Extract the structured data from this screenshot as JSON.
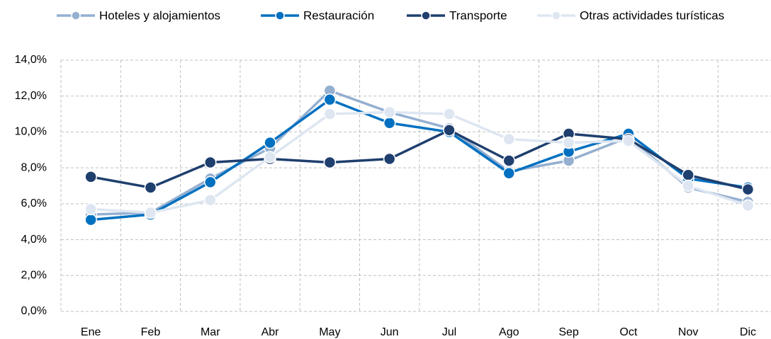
{
  "chart_data": {
    "type": "line",
    "categories": [
      "Ene",
      "Feb",
      "Mar",
      "Abr",
      "May",
      "Jun",
      "Jul",
      "Ago",
      "Sep",
      "Oct",
      "Nov",
      "Dic"
    ],
    "series": [
      {
        "name": "Hoteles y alojamientos",
        "color": "#94afd0",
        "values": [
          5.4,
          5.5,
          7.4,
          9.1,
          12.3,
          11.1,
          10.2,
          7.8,
          8.4,
          9.7,
          6.9,
          6.1
        ]
      },
      {
        "name": "Restauración",
        "color": "#0070c0",
        "values": [
          5.1,
          5.4,
          7.2,
          9.4,
          11.8,
          10.5,
          10.0,
          7.7,
          8.9,
          9.9,
          7.4,
          6.9
        ]
      },
      {
        "name": "Transporte",
        "color": "#1f3f6e",
        "values": [
          7.5,
          6.9,
          8.3,
          8.5,
          8.3,
          8.5,
          10.1,
          8.4,
          9.9,
          9.6,
          7.6,
          6.8
        ]
      },
      {
        "name": "Otras actividades turísticas",
        "color": "#dde6f1",
        "values": [
          5.7,
          5.5,
          6.2,
          8.6,
          11.0,
          11.1,
          11.0,
          9.6,
          9.4,
          9.5,
          7.0,
          5.9
        ]
      }
    ],
    "ylim": [
      0,
      14
    ],
    "yticks": [
      {
        "value": 0,
        "label": "0,0%"
      },
      {
        "value": 2,
        "label": "2,0%"
      },
      {
        "value": 4,
        "label": "4,0%"
      },
      {
        "value": 6,
        "label": "6,0%"
      },
      {
        "value": 8,
        "label": "8,0%"
      },
      {
        "value": 10,
        "label": "10,0%"
      },
      {
        "value": 12,
        "label": "12,0%"
      },
      {
        "value": 14,
        "label": "14,0%"
      }
    ],
    "grid": true,
    "legend": "top"
  }
}
